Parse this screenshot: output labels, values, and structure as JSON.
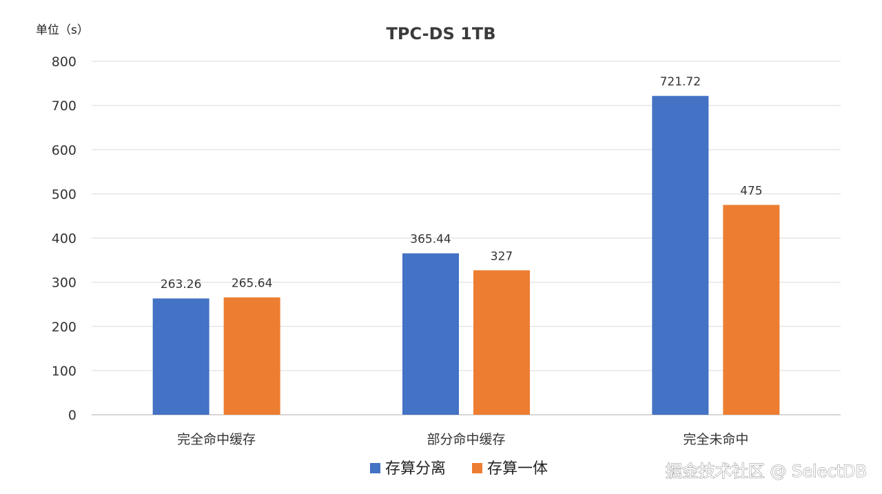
{
  "chart_data": {
    "type": "bar",
    "title": "TPC-DS 1TB",
    "unit_label": "单位（s）",
    "categories": [
      "完全命中缓存",
      "部分命中缓存",
      "完全未命中"
    ],
    "series": [
      {
        "name": "存算分离",
        "color": "#4472c4",
        "values": [
          263.26,
          365.44,
          721.72
        ],
        "labels": [
          "263.26",
          "365.44",
          "721.72"
        ]
      },
      {
        "name": "存算一体",
        "color": "#ed7d31",
        "values": [
          265.64,
          327,
          475
        ],
        "labels": [
          "265.64",
          "327",
          "475"
        ]
      }
    ],
    "ylim": [
      0,
      800
    ],
    "yticks": [
      "0",
      "100",
      "200",
      "300",
      "400",
      "500",
      "600",
      "700",
      "800"
    ],
    "grid": true,
    "legend": "bottom"
  },
  "watermark": "掘金技术社区 @ SelectDB"
}
